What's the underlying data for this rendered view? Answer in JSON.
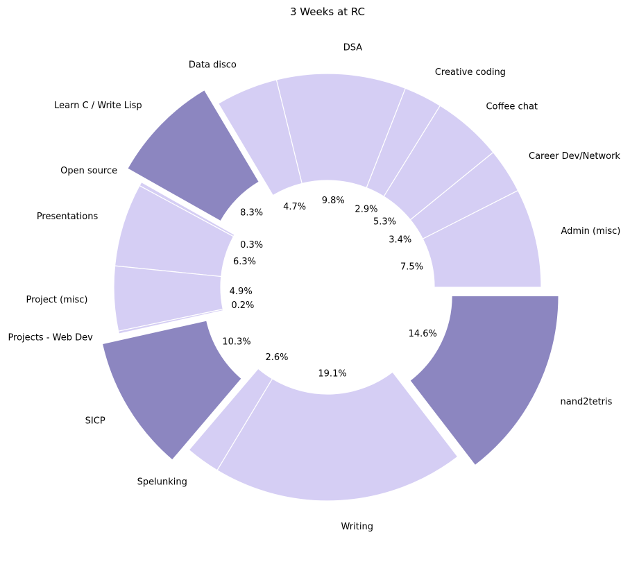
{
  "chart_data": {
    "type": "pie",
    "title": "3 Weeks at RC",
    "colors": {
      "normal": "#d5cef4",
      "highlight": "#8c86c0",
      "edge": "#ffffff"
    },
    "slices": [
      {
        "label": "Admin (misc)",
        "pct_label": "7.5%",
        "value": 7.5,
        "highlight": false
      },
      {
        "label": "Career Dev/Network",
        "pct_label": "3.4%",
        "value": 3.4,
        "highlight": false
      },
      {
        "label": "Coffee chat",
        "pct_label": "5.3%",
        "value": 5.3,
        "highlight": false
      },
      {
        "label": "Creative coding",
        "pct_label": "2.9%",
        "value": 2.9,
        "highlight": false
      },
      {
        "label": "DSA",
        "pct_label": "9.8%",
        "value": 9.8,
        "highlight": false
      },
      {
        "label": "Data disco",
        "pct_label": "4.7%",
        "value": 4.7,
        "highlight": false
      },
      {
        "label": "Learn C / Write Lisp",
        "pct_label": "8.3%",
        "value": 8.3,
        "highlight": true
      },
      {
        "label": "Open source",
        "pct_label": "0.3%",
        "value": 0.3,
        "highlight": false
      },
      {
        "label": "Presentations",
        "pct_label": "6.3%",
        "value": 6.3,
        "highlight": false
      },
      {
        "label": "Project (misc)",
        "pct_label": "4.9%",
        "value": 4.9,
        "highlight": false
      },
      {
        "label": "Projects - Web Dev",
        "pct_label": "0.2%",
        "value": 0.2,
        "highlight": false
      },
      {
        "label": "SICP",
        "pct_label": "10.3%",
        "value": 10.3,
        "highlight": true
      },
      {
        "label": "Spelunking",
        "pct_label": "2.6%",
        "value": 2.6,
        "highlight": false
      },
      {
        "label": "Writing",
        "pct_label": "19.1%",
        "value": 19.1,
        "highlight": false
      },
      {
        "label": "nand2tetris",
        "pct_label": "14.6%",
        "value": 14.6,
        "highlight": true
      }
    ]
  }
}
